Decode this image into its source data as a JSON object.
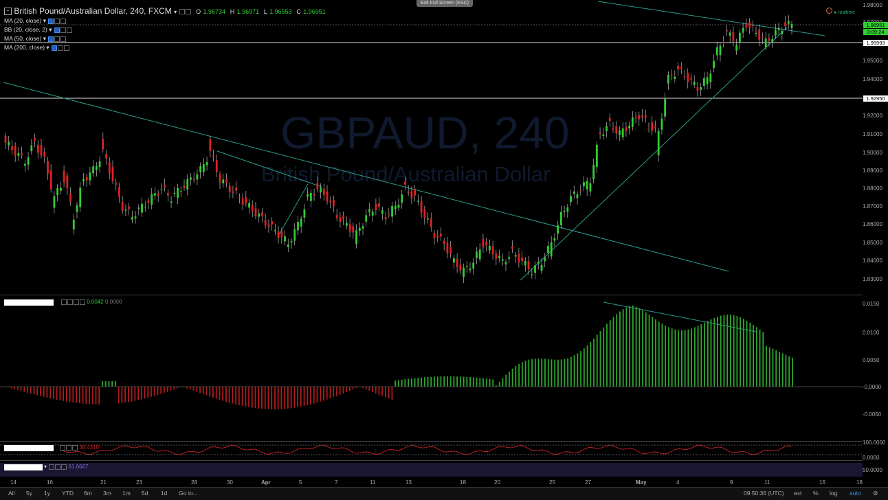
{
  "header": {
    "symbol": "British Pound/Australian Dollar, 240, FXCM",
    "open_label": "O",
    "open": "1.96734",
    "high_label": "H",
    "high": "1.96971",
    "low_label": "L",
    "low": "1.96553",
    "close_label": "C",
    "close": "1.96951"
  },
  "exit_fullscreen": "Exit Full Screen (ESC)",
  "realtime": "realtime",
  "indicators": [
    "MA (20, close)",
    "BB (20, close, 2)",
    "MA (50, close)",
    "MA (200, close)"
  ],
  "watermark": {
    "title": "GBPAUD, 240",
    "subtitle": "British Pound/Australian Dollar"
  },
  "price_axis": [
    "1.98000",
    "1.97000",
    "1.95993",
    "1.95000",
    "1.94000",
    "1.92950",
    "1.92000",
    "1.91000",
    "1.90000",
    "1.89000",
    "1.88000",
    "1.87000",
    "1.86000",
    "1.85000",
    "1.84000",
    "1.83000"
  ],
  "current_price": "1.96951",
  "countdown": "3:09:24",
  "macd": {
    "value1": "0.0042",
    "value2": "0.0000",
    "axis": [
      "0.0150",
      "0.0100",
      "0.0050",
      "-0.0000",
      "-0.0050"
    ]
  },
  "osc1": {
    "value": "38.4310",
    "axis": [
      "100.0000",
      "0.0000"
    ]
  },
  "osc2": {
    "value": "61.6667",
    "axis": [
      "50.0000"
    ]
  },
  "x_labels": [
    "14",
    "16",
    "21",
    "23",
    "28",
    "30",
    "Apr",
    "5",
    "7",
    "11",
    "13",
    "18",
    "20",
    "25",
    "27",
    "May",
    "4",
    "9",
    "11",
    "16",
    "18"
  ],
  "timeframes": [
    "All",
    "5y",
    "1y",
    "YTD",
    "6m",
    "3m",
    "1m",
    "5d",
    "1d",
    "Go to..."
  ],
  "clock": "09:50:36 (UTC)",
  "right_controls": [
    "ext",
    "%",
    "log",
    "auto"
  ],
  "chart_data": {
    "type": "candlestick",
    "title": "GBPAUD, 240",
    "price_range": [
      1.825,
      1.98
    ],
    "horizontal_levels": [
      1.95993,
      1.9295
    ],
    "close_approx": [
      1.905,
      1.9,
      1.895,
      1.905,
      1.895,
      1.875,
      1.885,
      1.865,
      1.885,
      1.89,
      1.9,
      1.885,
      1.87,
      1.865,
      1.87,
      1.875,
      1.88,
      1.875,
      1.88,
      1.885,
      1.89,
      1.9,
      1.885,
      1.88,
      1.875,
      1.87,
      1.865,
      1.86,
      1.855,
      1.85,
      1.86,
      1.875,
      1.88,
      1.875,
      1.865,
      1.86,
      1.855,
      1.865,
      1.87,
      1.865,
      1.87,
      1.88,
      1.875,
      1.865,
      1.855,
      1.85,
      1.84,
      1.835,
      1.84,
      1.85,
      1.845,
      1.84,
      1.845,
      1.84,
      1.835,
      1.84,
      1.85,
      1.865,
      1.875,
      1.88,
      1.885,
      1.91,
      1.915,
      1.91,
      1.915,
      1.92,
      1.915,
      1.91,
      1.94,
      1.945,
      1.94,
      1.935,
      1.94,
      1.955,
      1.965,
      1.96,
      1.97,
      1.965,
      1.96,
      1.965,
      1.9695
    ]
  }
}
